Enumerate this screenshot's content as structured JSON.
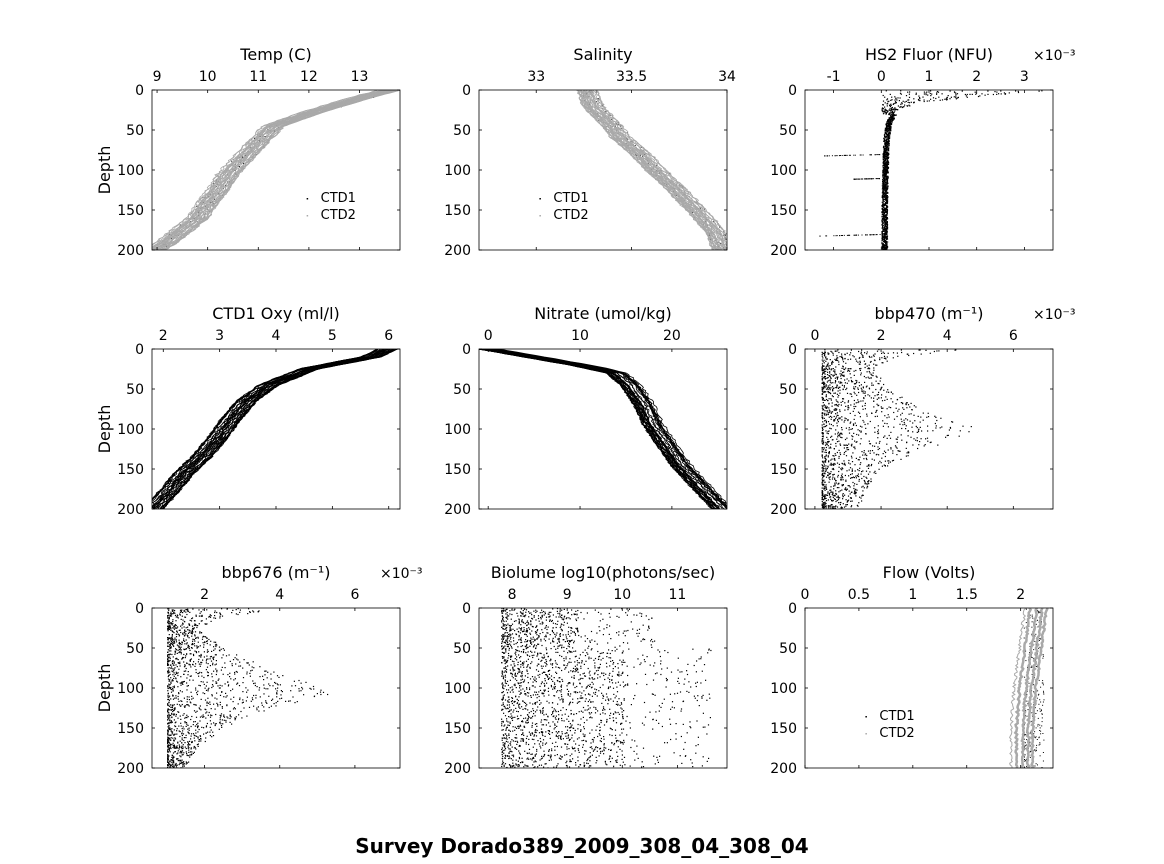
{
  "figure_title": "Survey Dorado389_2009_308_04_308_04",
  "colors": {
    "ctd1": "#000000",
    "ctd2": "#a9a9a9",
    "axes": "#000000"
  },
  "chart_data": [
    {
      "type": "line",
      "title": "Temp (C)",
      "ylabel": "Depth",
      "xlim": [
        8.9,
        13.8
      ],
      "xticks": [
        9,
        10,
        11,
        12,
        13
      ],
      "ylim": [
        0,
        200
      ],
      "yticks": [
        0,
        50,
        100,
        150,
        200
      ],
      "y_reversed": true,
      "legend": {
        "position": "lower-right",
        "entries": [
          "CTD1",
          "CTD2"
        ]
      },
      "series": [
        {
          "name": "CTD1",
          "style": "points",
          "color": "#000000",
          "x": [
            13.6,
            13.0,
            12.2,
            11.3,
            11.0,
            10.7,
            10.4,
            10.2,
            10.0,
            9.8,
            9.5,
            9.2,
            8.95
          ],
          "y": [
            0,
            10,
            25,
            45,
            65,
            85,
            105,
            125,
            140,
            160,
            175,
            190,
            200
          ]
        },
        {
          "name": "CTD2",
          "style": "lines",
          "color": "#a9a9a9",
          "x": [
            13.6,
            13.0,
            12.2,
            11.3,
            11.0,
            10.7,
            10.4,
            10.2,
            10.0,
            9.8,
            9.5,
            9.2,
            8.95
          ],
          "y": [
            0,
            10,
            25,
            45,
            65,
            85,
            105,
            125,
            140,
            160,
            175,
            190,
            200
          ]
        }
      ]
    },
    {
      "type": "line",
      "title": "Salinity",
      "xlim": [
        32.7,
        34.0
      ],
      "xticks": [
        33,
        33.5,
        34
      ],
      "ylim": [
        0,
        200
      ],
      "yticks": [
        0,
        50,
        100,
        150,
        200
      ],
      "y_reversed": true,
      "legend": {
        "position": "lower-left",
        "entries": [
          "CTD1",
          "CTD2"
        ]
      },
      "series": [
        {
          "name": "CTD1",
          "style": "points",
          "color": "#000000",
          "x": [
            33.27,
            33.3,
            33.38,
            33.45,
            33.55,
            33.63,
            33.72,
            33.8,
            33.88,
            33.95,
            33.98
          ],
          "y": [
            0,
            20,
            40,
            60,
            80,
            100,
            120,
            140,
            160,
            180,
            200
          ]
        },
        {
          "name": "CTD2",
          "style": "lines",
          "color": "#a9a9a9",
          "x": [
            33.27,
            33.3,
            33.38,
            33.45,
            33.55,
            33.63,
            33.72,
            33.8,
            33.88,
            33.95,
            33.98
          ],
          "y": [
            0,
            20,
            40,
            60,
            80,
            100,
            120,
            140,
            160,
            180,
            200
          ]
        }
      ]
    },
    {
      "type": "scatter",
      "title": "HS2 Fluor (NFU)",
      "x_multiplier": "×10⁻³",
      "xlim": [
        -1.6,
        3.6
      ],
      "xticks": [
        -1,
        0,
        1,
        2,
        3
      ],
      "ylim": [
        0,
        200
      ],
      "yticks": [
        0,
        50,
        100,
        150,
        200
      ],
      "y_reversed": true,
      "series": [
        {
          "name": "",
          "style": "dense-points",
          "color": "#000000",
          "x": [
            3.5,
            2.0,
            0.8,
            0.3,
            0.15,
            0.1,
            0.08,
            0.07,
            0.06,
            0.06,
            0.06
          ],
          "y": [
            0,
            8,
            15,
            25,
            40,
            60,
            90,
            120,
            150,
            180,
            200
          ]
        }
      ]
    },
    {
      "type": "line",
      "title": "CTD1 Oxy (ml/l)",
      "ylabel": "Depth",
      "xlim": [
        1.8,
        6.2
      ],
      "xticks": [
        2,
        3,
        4,
        5,
        6
      ],
      "ylim": [
        0,
        200
      ],
      "yticks": [
        0,
        50,
        100,
        150,
        200
      ],
      "y_reversed": true,
      "series": [
        {
          "name": "",
          "style": "lines",
          "color": "#000000",
          "x": [
            6.0,
            5.7,
            4.6,
            3.9,
            3.5,
            3.2,
            3.0,
            2.7,
            2.4,
            2.1,
            1.85
          ],
          "y": [
            0,
            10,
            25,
            45,
            65,
            90,
            110,
            135,
            155,
            180,
            200
          ]
        }
      ]
    },
    {
      "type": "line",
      "title": "Nitrate (umol/kg)",
      "xlim": [
        -1,
        26
      ],
      "xticks": [
        0,
        10,
        20
      ],
      "ylim": [
        0,
        200
      ],
      "yticks": [
        0,
        50,
        100,
        150,
        200
      ],
      "y_reversed": true,
      "series": [
        {
          "name": "",
          "style": "lines",
          "color": "#000000",
          "x": [
            0,
            5,
            10,
            14,
            15.5,
            17,
            18,
            19.5,
            21,
            23,
            25.5
          ],
          "y": [
            0,
            10,
            20,
            30,
            45,
            70,
            95,
            120,
            145,
            170,
            200
          ]
        }
      ]
    },
    {
      "type": "scatter",
      "title": "bbp470 (m⁻¹)",
      "x_multiplier": "×10⁻³",
      "xlim": [
        -0.3,
        7.2
      ],
      "xticks": [
        0,
        2,
        4,
        6
      ],
      "ylim": [
        0,
        200
      ],
      "yticks": [
        0,
        50,
        100,
        150,
        200
      ],
      "y_reversed": true,
      "series": [
        {
          "name": "",
          "style": "dense-points",
          "color": "#000000",
          "x": [
            4.5,
            2.5,
            1.8,
            2.2,
            3.5,
            5.0,
            3.0,
            2.0,
            1.6,
            1.4,
            1.2
          ],
          "y": [
            0,
            10,
            25,
            50,
            80,
            100,
            130,
            150,
            170,
            190,
            200
          ]
        }
      ]
    },
    {
      "type": "scatter",
      "title": "bbp676 (m⁻¹)",
      "ylabel": "Depth",
      "x_multiplier": "×10⁻³",
      "xlim": [
        0.6,
        7.2
      ],
      "xticks": [
        2,
        4,
        6
      ],
      "ylim": [
        0,
        200
      ],
      "yticks": [
        0,
        50,
        100,
        150,
        200
      ],
      "y_reversed": true,
      "series": [
        {
          "name": "",
          "style": "dense-points",
          "color": "#000000",
          "x": [
            4.5,
            2.5,
            1.8,
            2.5,
            4.0,
            5.5,
            3.5,
            2.5,
            1.9,
            1.6,
            1.5
          ],
          "y": [
            0,
            10,
            25,
            50,
            80,
            105,
            130,
            150,
            170,
            190,
            200
          ]
        }
      ]
    },
    {
      "type": "scatter",
      "title": "Biolume log10(photons/sec)",
      "xlim": [
        7.4,
        11.9
      ],
      "xticks": [
        8,
        9,
        10,
        11
      ],
      "ylim": [
        0,
        200
      ],
      "yticks": [
        0,
        50,
        100,
        150,
        200
      ],
      "y_reversed": true,
      "series": [
        {
          "name": "",
          "style": "dense-points",
          "color": "#000000",
          "x": [
            8.9,
            9.1,
            9.2,
            9.3,
            9.3,
            9.3,
            9.3,
            9.2
          ],
          "y": [
            0,
            30,
            60,
            90,
            120,
            150,
            180,
            200
          ]
        }
      ]
    },
    {
      "type": "line",
      "title": "Flow (Volts)",
      "xlim": [
        0,
        2.3
      ],
      "xticks": [
        0,
        0.5,
        1,
        1.5,
        2
      ],
      "ylim": [
        0,
        200
      ],
      "yticks": [
        0,
        50,
        100,
        150,
        200
      ],
      "y_reversed": true,
      "legend": {
        "position": "lower-left",
        "entries": [
          "CTD1",
          "CTD2"
        ]
      },
      "series": [
        {
          "name": "CTD1",
          "style": "points",
          "color": "#000000",
          "x": [
            2.12,
            2.12,
            2.12,
            2.12,
            2.12
          ],
          "y": [
            0,
            50,
            100,
            150,
            200
          ]
        },
        {
          "name": "CTD2",
          "style": "band",
          "color": "#a9a9a9",
          "x": [
            2.15,
            2.1,
            2.05,
            2.02,
            2.02
          ],
          "y": [
            0,
            50,
            100,
            150,
            200
          ]
        }
      ]
    }
  ]
}
